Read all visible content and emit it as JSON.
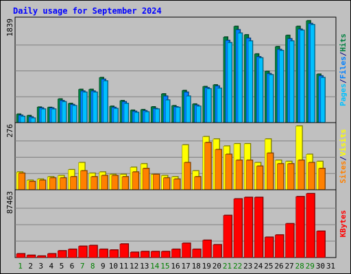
{
  "chart_data": {
    "type": "bar",
    "title": "Daily usage for September 2024",
    "categories": [
      "1",
      "2",
      "3",
      "4",
      "5",
      "6",
      "7",
      "8",
      "9",
      "10",
      "11",
      "12",
      "13",
      "14",
      "15",
      "16",
      "17",
      "18",
      "19",
      "20",
      "21",
      "22",
      "23",
      "24",
      "25",
      "26",
      "27",
      "28",
      "29",
      "30",
      "31"
    ],
    "weekend_days": [
      "1",
      "7",
      "8",
      "14",
      "15",
      "21",
      "22",
      "28",
      "29"
    ],
    "panels": [
      {
        "id": "top",
        "ymax_label": "1839",
        "ymax": 1839,
        "axis_label_parts": [
          "Pages",
          "/",
          "Files",
          "/",
          "Hits"
        ],
        "axis_label_colors": [
          "#00c0ff",
          "#000080",
          "#0080ff",
          "#000080",
          "#008040"
        ],
        "series": [
          {
            "name": "Hits",
            "color": "#008040",
            "values": [
              150,
              125,
              275,
              270,
              420,
              340,
              590,
              590,
              800,
              290,
              390,
              220,
              230,
              280,
              510,
              300,
              570,
              330,
              640,
              670,
              1520,
              1710,
              1560,
              1220,
              910,
              1350,
              1550,
              1710,
              1810,
              860,
              0
            ]
          },
          {
            "name": "Files",
            "color": "#0080ff",
            "values": [
              130,
              100,
              260,
              260,
              390,
              320,
              560,
              560,
              770,
              270,
              370,
              200,
              210,
              250,
              470,
              280,
              540,
              310,
              620,
              650,
              1460,
              1650,
              1500,
              1170,
              870,
              1300,
              1490,
              1660,
              1760,
              830,
              0
            ]
          },
          {
            "name": "Pages",
            "color": "#00c0ff",
            "values": [
              110,
              80,
              240,
              240,
              370,
              300,
              540,
              540,
              740,
              250,
              340,
              180,
              190,
              240,
              400,
              270,
              470,
              290,
              600,
              610,
              1420,
              1590,
              1450,
              1150,
              850,
              1280,
              1450,
              1640,
              1740,
              800,
              0
            ]
          }
        ]
      },
      {
        "id": "mid",
        "ymax_label": "276",
        "ymax": 276,
        "axis_label_parts": [
          "Sites",
          "/",
          "Visits"
        ],
        "axis_label_colors": [
          "#ff8000",
          "#000080",
          "#ffff00"
        ],
        "series": [
          {
            "name": "Visits",
            "color": "#ffff00",
            "values": [
              75,
              40,
              45,
              55,
              60,
              85,
              115,
              70,
              75,
              65,
              65,
              95,
              110,
              65,
              60,
              55,
              190,
              80,
              225,
              215,
              185,
              195,
              195,
              115,
              215,
              125,
              120,
              270,
              150,
              120,
              0
            ]
          },
          {
            "name": "Sites",
            "color": "#ff8000",
            "values": [
              70,
              35,
              40,
              50,
              50,
              55,
              80,
              55,
              60,
              60,
              55,
              75,
              90,
              65,
              50,
              45,
              115,
              55,
              200,
              170,
              150,
              125,
              125,
              100,
              155,
              110,
              110,
              125,
              115,
              90,
              0
            ]
          }
        ]
      },
      {
        "id": "bot",
        "ymax_label": "87463",
        "ymax": 87463,
        "axis_label_parts": [
          "KBytes"
        ],
        "axis_label_colors": [
          "#ff0000"
        ],
        "series": [
          {
            "name": "KBytes",
            "color": "#ff0000",
            "values": [
              5000,
              3000,
              2000,
              5000,
              9000,
              11000,
              15000,
              16000,
              11000,
              10000,
              18000,
              7000,
              8000,
              8000,
              8000,
              11000,
              19000,
              11000,
              23000,
              17000,
              56000,
              78000,
              80000,
              80000,
              27000,
              30000,
              45000,
              81000,
              85000,
              35000,
              0
            ]
          }
        ]
      }
    ]
  }
}
